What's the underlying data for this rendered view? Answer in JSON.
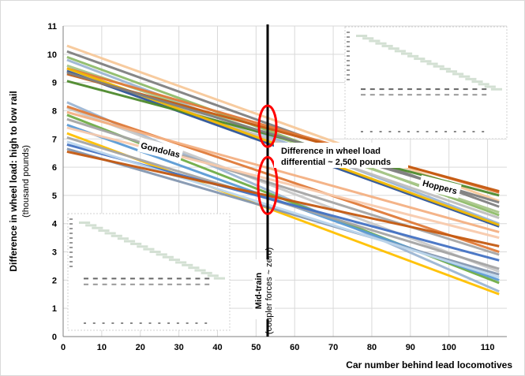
{
  "chart_data": {
    "type": "line",
    "title": "",
    "xlabel": "Car number behind lead locomotives",
    "ylabel": "Difference in wheel load: high to low rail",
    "ylabel_sub": "(thousand pounds)",
    "xlim": [
      0,
      115
    ],
    "ylim": [
      0,
      11
    ],
    "x_ticks": [
      "0",
      "10",
      "20",
      "30",
      "40",
      "50",
      "60",
      "70",
      "80",
      "90",
      "100",
      "110"
    ],
    "y_ticks": [
      "0",
      "1",
      "2",
      "3",
      "4",
      "5",
      "6",
      "7",
      "8",
      "9",
      "10",
      "11"
    ],
    "grid": true,
    "midtrain_x": 53,
    "midtrain_label": "Mid-train",
    "midtrain_sublabel": "(coupler forces ~ zero)",
    "annotation": [
      "Difference in wheel load",
      "differential ~ 2,500 pounds"
    ],
    "group_labels": {
      "gondolas": "Gondolas",
      "hoppers": "Hoppers"
    },
    "ellipses": [
      {
        "x": 53,
        "y": 7.45
      },
      {
        "x": 53,
        "y": 5.35
      }
    ],
    "hoppers_series": [
      {
        "color": "#f7c99a",
        "x": [
          1,
          113
        ],
        "y": [
          10.3,
          4.8
        ]
      },
      {
        "color": "#808080",
        "x": [
          1,
          113
        ],
        "y": [
          10.1,
          4.6
        ]
      },
      {
        "color": "#8fbc6a",
        "x": [
          1,
          113
        ],
        "y": [
          9.9,
          4.3
        ]
      },
      {
        "color": "#9db6d3",
        "x": [
          1,
          113
        ],
        "y": [
          9.8,
          4.0
        ]
      },
      {
        "color": "#a9c78a",
        "x": [
          1,
          113
        ],
        "y": [
          9.6,
          4.4
        ]
      },
      {
        "color": "#e07b39",
        "x": [
          1,
          113
        ],
        "y": [
          9.5,
          5.1
        ]
      },
      {
        "color": "#bfbfbf",
        "x": [
          1,
          113
        ],
        "y": [
          9.45,
          4.2
        ]
      },
      {
        "color": "#2f5597",
        "x": [
          1,
          113
        ],
        "y": [
          9.4,
          3.9
        ]
      },
      {
        "color": "#4e8a2d",
        "x": [
          1,
          113
        ],
        "y": [
          9.05,
          5.0
        ]
      },
      {
        "color": "#f2b800",
        "x": [
          1,
          113
        ],
        "y": [
          9.5,
          3.95
        ]
      },
      {
        "color": "#c55a11",
        "x": [
          1,
          113
        ],
        "y": [
          9.3,
          5.15
        ]
      },
      {
        "color": "#7f7f7f",
        "x": [
          1,
          113
        ],
        "y": [
          9.35,
          4.75
        ]
      }
    ],
    "gondolas_series": [
      {
        "color": "#9db6d3",
        "x": [
          1,
          113
        ],
        "y": [
          8.3,
          1.6
        ]
      },
      {
        "color": "#c9c9c9",
        "x": [
          1,
          113
        ],
        "y": [
          8.1,
          2.3
        ]
      },
      {
        "color": "#e07b39",
        "x": [
          1,
          113
        ],
        "y": [
          8.15,
          3.0
        ]
      },
      {
        "color": "#f4b183",
        "x": [
          1,
          113
        ],
        "y": [
          7.95,
          3.7
        ]
      },
      {
        "color": "#70ad47",
        "x": [
          1,
          113
        ],
        "y": [
          7.85,
          1.9
        ]
      },
      {
        "color": "#a6a6a6",
        "x": [
          1,
          113
        ],
        "y": [
          7.7,
          2.9
        ]
      },
      {
        "color": "#5b9bd5",
        "x": [
          1,
          113
        ],
        "y": [
          7.5,
          2.0
        ]
      },
      {
        "color": "#f8cbad",
        "x": [
          1,
          113
        ],
        "y": [
          7.4,
          3.5
        ]
      },
      {
        "color": "#ffc000",
        "x": [
          1,
          113
        ],
        "y": [
          7.2,
          1.5
        ]
      },
      {
        "color": "#a5a5a5",
        "x": [
          1,
          113
        ],
        "y": [
          7.05,
          2.4
        ]
      },
      {
        "color": "#4472c4",
        "x": [
          1,
          113
        ],
        "y": [
          6.8,
          2.7
        ]
      },
      {
        "color": "#8497b0",
        "x": [
          1,
          113
        ],
        "y": [
          6.65,
          2.2
        ]
      },
      {
        "color": "#bdd7ee",
        "x": [
          1,
          113
        ],
        "y": [
          6.9,
          2.1
        ]
      },
      {
        "color": "#c55a11",
        "x": [
          1,
          113
        ],
        "y": [
          6.55,
          3.2
        ]
      }
    ]
  }
}
